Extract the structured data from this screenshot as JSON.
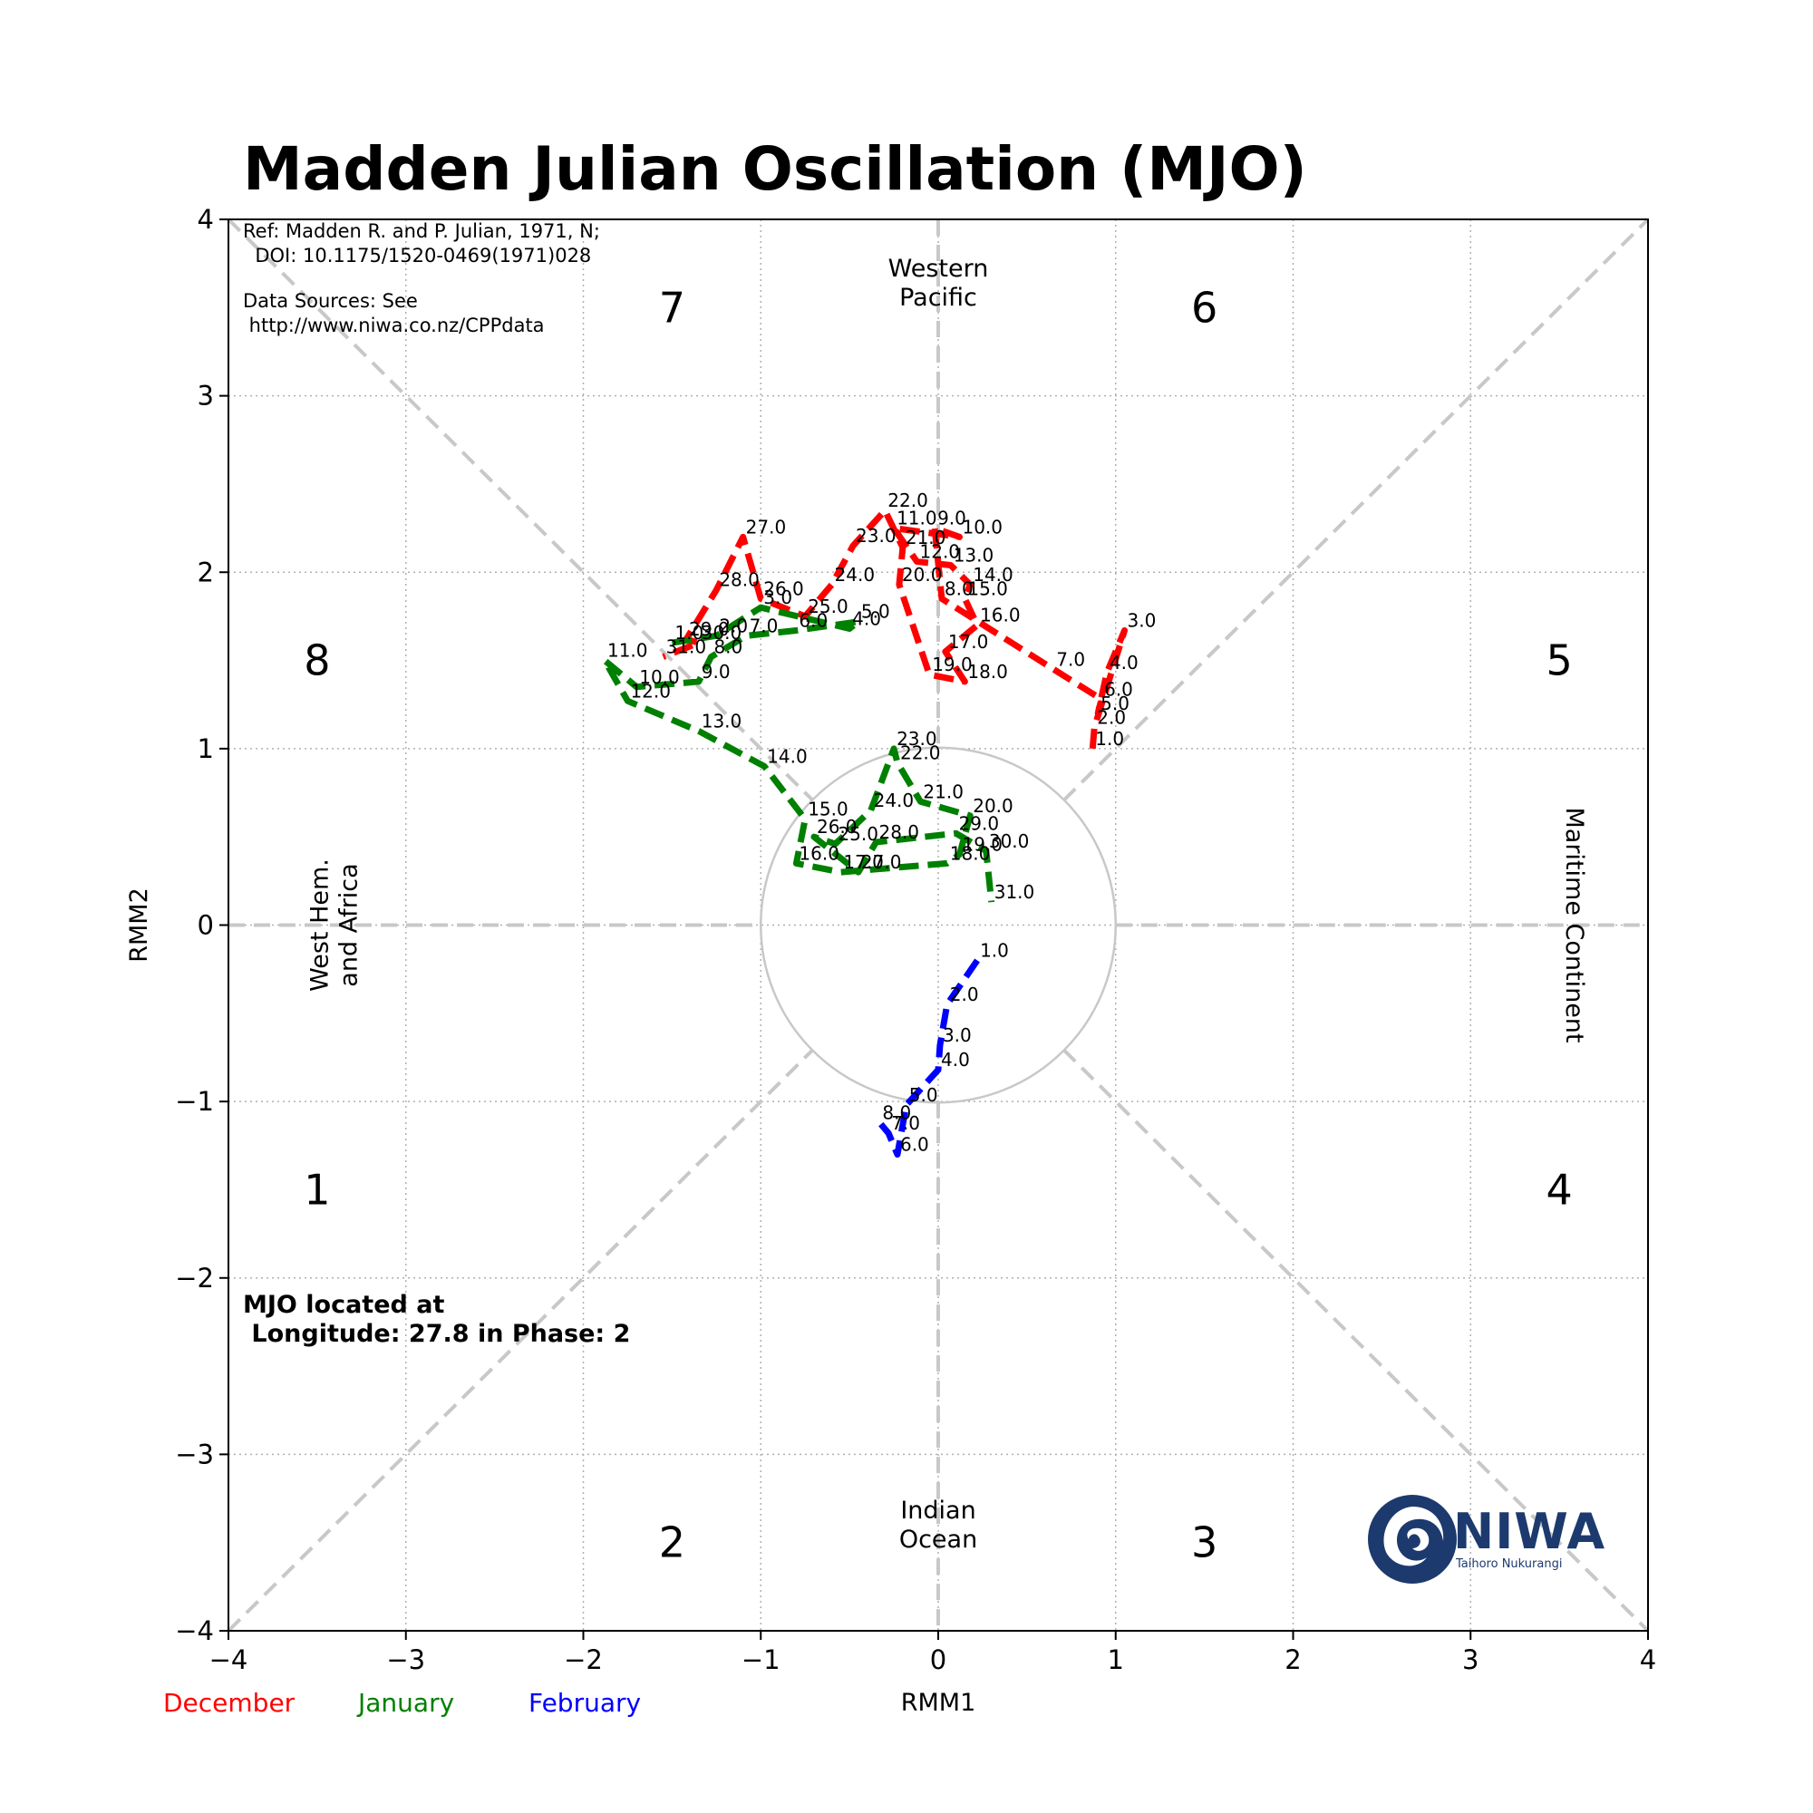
{
  "chart_data": {
    "type": "line",
    "title": "Madden Julian Oscillation (MJO)",
    "xlabel": "RMM1",
    "ylabel": "RMM2",
    "xlim": [
      -4,
      4
    ],
    "ylim": [
      -4,
      4
    ],
    "xticks": [
      -4,
      -3,
      -2,
      -1,
      0,
      1,
      2,
      3,
      4
    ],
    "yticks": [
      -4,
      -3,
      -2,
      -1,
      0,
      1,
      2,
      3,
      4
    ],
    "xtick_labels": [
      "−4",
      "−3",
      "−2",
      "−1",
      "0",
      "1",
      "2",
      "3",
      "4"
    ],
    "ytick_labels": [
      "−4",
      "−3",
      "−2",
      "−1",
      "0",
      "1",
      "2",
      "3",
      "4"
    ],
    "grid": true,
    "unit_circle_radius": 1,
    "phases": [
      {
        "label": "1",
        "x": -3.5,
        "y": -1.5
      },
      {
        "label": "2",
        "x": -1.5,
        "y": -3.5
      },
      {
        "label": "3",
        "x": 1.5,
        "y": -3.5
      },
      {
        "label": "4",
        "x": 3.5,
        "y": -1.5
      },
      {
        "label": "5",
        "x": 3.5,
        "y": 1.5
      },
      {
        "label": "6",
        "x": 1.5,
        "y": 3.5
      },
      {
        "label": "7",
        "x": -1.5,
        "y": 3.5
      },
      {
        "label": "8",
        "x": -3.5,
        "y": 1.5
      }
    ],
    "regions": {
      "top": [
        "Western",
        "Pacific"
      ],
      "bottom": [
        "Indian",
        "Ocean"
      ],
      "left": [
        "West Hem.",
        "and Africa"
      ],
      "right": "Maritime Continent"
    },
    "series": [
      {
        "name": "December",
        "color": "#ff0000",
        "points": [
          {
            "x": 0.87,
            "y": 1.0,
            "label": "1.0"
          },
          {
            "x": 0.88,
            "y": 1.12,
            "label": "2.0"
          },
          {
            "x": 1.05,
            "y": 1.67,
            "label": "3.0"
          },
          {
            "x": 0.95,
            "y": 1.43,
            "label": "4.0"
          },
          {
            "x": 0.9,
            "y": 1.2,
            "label": "5.0"
          },
          {
            "x": 0.92,
            "y": 1.28,
            "label": "6.0"
          },
          {
            "x": 0.65,
            "y": 1.45,
            "label": "7.0"
          },
          {
            "x": 0.02,
            "y": 1.85,
            "label": "8.0"
          },
          {
            "x": -0.02,
            "y": 2.25,
            "label": "9.0"
          },
          {
            "x": 0.12,
            "y": 2.2,
            "label": "10.0"
          },
          {
            "x": -0.25,
            "y": 2.25,
            "label": "11.0"
          },
          {
            "x": -0.12,
            "y": 2.06,
            "label": "12.0"
          },
          {
            "x": 0.07,
            "y": 2.04,
            "label": "13.0"
          },
          {
            "x": 0.18,
            "y": 1.93,
            "label": "14.0"
          },
          {
            "x": 0.15,
            "y": 1.85,
            "label": "15.0"
          },
          {
            "x": 0.22,
            "y": 1.7,
            "label": "16.0"
          },
          {
            "x": 0.04,
            "y": 1.55,
            "label": "17.0"
          },
          {
            "x": 0.15,
            "y": 1.38,
            "label": "18.0"
          },
          {
            "x": -0.05,
            "y": 1.42,
            "label": "19.0"
          },
          {
            "x": -0.22,
            "y": 1.93,
            "label": "20.0"
          },
          {
            "x": -0.2,
            "y": 2.14,
            "label": "21.0"
          },
          {
            "x": -0.3,
            "y": 2.35,
            "label": "22.0"
          },
          {
            "x": -0.48,
            "y": 2.15,
            "label": "23.0"
          },
          {
            "x": -0.6,
            "y": 1.93,
            "label": "24.0"
          },
          {
            "x": -0.75,
            "y": 1.75,
            "label": "25.0"
          },
          {
            "x": -1.0,
            "y": 1.85,
            "label": "26.0"
          },
          {
            "x": -1.1,
            "y": 2.2,
            "label": "27.0"
          },
          {
            "x": -1.25,
            "y": 1.9,
            "label": "28.0"
          },
          {
            "x": -1.42,
            "y": 1.62,
            "label": "29.0"
          },
          {
            "x": -1.35,
            "y": 1.6,
            "label": "30.0"
          },
          {
            "x": -1.55,
            "y": 1.52,
            "label": "31.0"
          }
        ]
      },
      {
        "name": "January",
        "color": "#008000",
        "points": [
          {
            "x": -1.5,
            "y": 1.6,
            "label": "1.0"
          },
          {
            "x": -1.25,
            "y": 1.64,
            "label": "2.0"
          },
          {
            "x": -1.0,
            "y": 1.8,
            "label": "3.0"
          },
          {
            "x": -0.5,
            "y": 1.68,
            "label": "4.0"
          },
          {
            "x": -0.45,
            "y": 1.72,
            "label": "5.0"
          },
          {
            "x": -0.8,
            "y": 1.67,
            "label": "6.0"
          },
          {
            "x": -1.08,
            "y": 1.64,
            "label": "7.0"
          },
          {
            "x": -1.28,
            "y": 1.52,
            "label": "8.0"
          },
          {
            "x": -1.35,
            "y": 1.38,
            "label": "9.0"
          },
          {
            "x": -1.7,
            "y": 1.35,
            "label": "10.0"
          },
          {
            "x": -1.88,
            "y": 1.5,
            "label": "11.0"
          },
          {
            "x": -1.75,
            "y": 1.27,
            "label": "12.0"
          },
          {
            "x": -1.35,
            "y": 1.1,
            "label": "13.0"
          },
          {
            "x": -0.98,
            "y": 0.9,
            "label": "14.0"
          },
          {
            "x": -0.75,
            "y": 0.6,
            "label": "15.0"
          },
          {
            "x": -0.8,
            "y": 0.35,
            "label": "16.0"
          },
          {
            "x": -0.55,
            "y": 0.3,
            "label": "17.0"
          },
          {
            "x": 0.05,
            "y": 0.35,
            "label": "18.0"
          },
          {
            "x": 0.12,
            "y": 0.4,
            "label": "19.0"
          },
          {
            "x": 0.18,
            "y": 0.62,
            "label": "20.0"
          },
          {
            "x": -0.1,
            "y": 0.7,
            "label": "21.0"
          },
          {
            "x": -0.23,
            "y": 0.92,
            "label": "22.0"
          },
          {
            "x": -0.25,
            "y": 1.0,
            "label": "23.0"
          },
          {
            "x": -0.38,
            "y": 0.65,
            "label": "24.0"
          },
          {
            "x": -0.58,
            "y": 0.46,
            "label": "25.0"
          },
          {
            "x": -0.7,
            "y": 0.5,
            "label": "26.0"
          },
          {
            "x": -0.45,
            "y": 0.3,
            "label": "27.0"
          },
          {
            "x": -0.35,
            "y": 0.47,
            "label": "28.0"
          },
          {
            "x": 0.1,
            "y": 0.52,
            "label": "29.0"
          },
          {
            "x": 0.27,
            "y": 0.42,
            "label": "30.0"
          },
          {
            "x": 0.3,
            "y": 0.13,
            "label": "31.0"
          }
        ]
      },
      {
        "name": "February",
        "color": "#0000ff",
        "points": [
          {
            "x": 0.22,
            "y": -0.2,
            "label": "1.0"
          },
          {
            "x": 0.05,
            "y": -0.45,
            "label": "2.0"
          },
          {
            "x": 0.01,
            "y": -0.68,
            "label": "3.0"
          },
          {
            "x": 0.0,
            "y": -0.82,
            "label": "4.0"
          },
          {
            "x": -0.18,
            "y": -1.02,
            "label": "5.0"
          },
          {
            "x": -0.23,
            "y": -1.3,
            "label": "6.0"
          },
          {
            "x": -0.28,
            "y": -1.18,
            "label": "7.0"
          },
          {
            "x": -0.33,
            "y": -1.12,
            "label": "8.0"
          }
        ]
      }
    ]
  },
  "annotations": {
    "ref_line1": "Ref: Madden R. and P. Julian, 1971, N;",
    "ref_line2": "  DOI: 10.1175/1520-0469(1971)028",
    "source_line1": "Data Sources: See",
    "source_line2": " http://www.niwa.co.nz/CPPdata",
    "located_line1": "MJO located at",
    "located_line2": " Longitude: 27.8 in Phase: 2"
  },
  "logo": {
    "word": "NIWA",
    "subtitle": "Taihoro Nukurangi",
    "color": "#1d3a6e"
  }
}
